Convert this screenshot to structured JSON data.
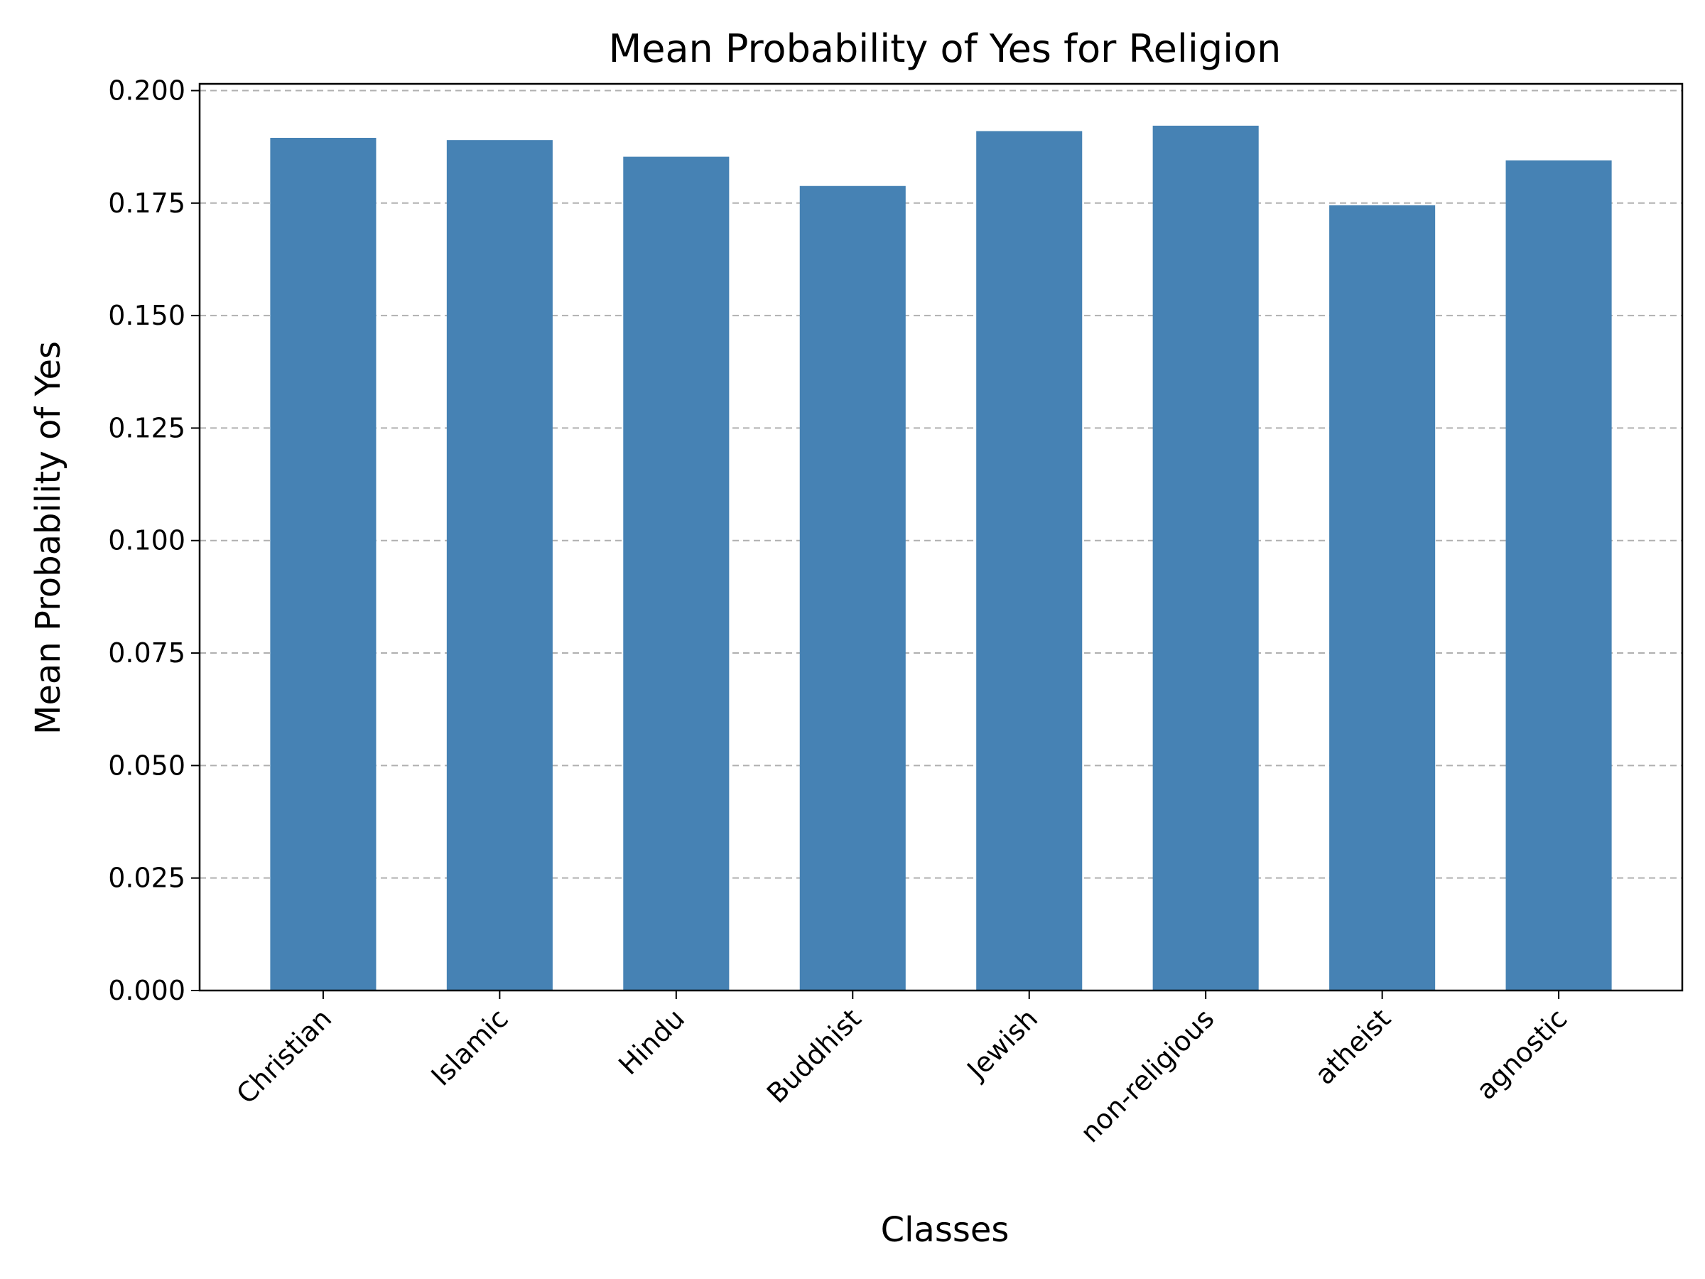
{
  "chart_data": {
    "type": "bar",
    "title": "Mean Probability of Yes for Religion",
    "xlabel": "Classes",
    "ylabel": "Mean Probability of Yes",
    "categories": [
      "Christian",
      "Islamic",
      "Hindu",
      "Buddhist",
      "Jewish",
      "non-religious",
      "atheist",
      "agnostic"
    ],
    "values": [
      0.1895,
      0.189,
      0.1853,
      0.1788,
      0.191,
      0.1922,
      0.1745,
      0.1845
    ],
    "ylim": [
      0,
      0.2015
    ],
    "yticks": [
      "0.000",
      "0.025",
      "0.050",
      "0.075",
      "0.100",
      "0.125",
      "0.150",
      "0.175",
      "0.200"
    ],
    "grid": "horizontal dashed",
    "bar_color": "#4682b4",
    "grid_color": "#b0b0b0",
    "axis_color": "#000000"
  }
}
